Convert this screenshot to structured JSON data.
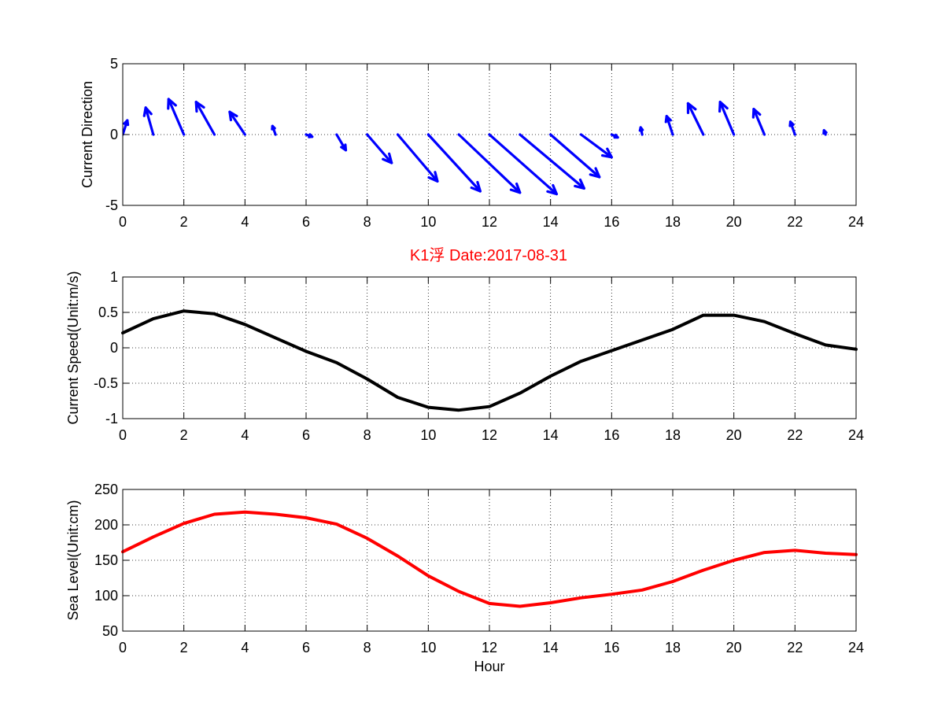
{
  "title": {
    "text": "K1浮    Date:2017-08-31",
    "color": "#ff0000"
  },
  "chart_data": [
    {
      "type": "quiver",
      "ylabel": "Current Direction",
      "xlim": [
        0,
        24
      ],
      "ylim": [
        -5,
        5
      ],
      "xticks": [
        0,
        2,
        4,
        6,
        8,
        10,
        12,
        14,
        16,
        18,
        20,
        22,
        24
      ],
      "yticks": [
        -5,
        0,
        5
      ],
      "grid": true,
      "color": "#0000ff",
      "origins_x": [
        0,
        1,
        2,
        3,
        4,
        5,
        6,
        7,
        8,
        9,
        10,
        11,
        12,
        13,
        14,
        15,
        16,
        17,
        18,
        19,
        20,
        21,
        22,
        23
      ],
      "u": [
        0.15,
        -0.25,
        -0.5,
        -0.6,
        -0.5,
        -0.1,
        0.2,
        0.3,
        0.8,
        1.3,
        1.7,
        2.0,
        2.2,
        2.1,
        1.6,
        1.0,
        0.2,
        -0.05,
        -0.2,
        -0.5,
        -0.45,
        -0.35,
        -0.15,
        -0.05
      ],
      "v": [
        1.0,
        1.9,
        2.5,
        2.3,
        1.6,
        0.6,
        -0.15,
        -1.1,
        -2.0,
        -3.3,
        -4.0,
        -4.1,
        -4.2,
        -3.8,
        -3.0,
        -1.6,
        -0.2,
        0.5,
        1.3,
        2.2,
        2.3,
        1.8,
        0.9,
        0.3
      ]
    },
    {
      "type": "line",
      "ylabel": "Current Speed(Unit:m/s)",
      "xlim": [
        0,
        24
      ],
      "ylim": [
        -1,
        1
      ],
      "xticks": [
        0,
        2,
        4,
        6,
        8,
        10,
        12,
        14,
        16,
        18,
        20,
        22,
        24
      ],
      "yticks": [
        -1,
        -0.5,
        0,
        0.5,
        1
      ],
      "grid": true,
      "color": "#000000",
      "x": [
        0,
        1,
        2,
        3,
        4,
        5,
        6,
        7,
        8,
        9,
        10,
        11,
        12,
        13,
        14,
        15,
        16,
        17,
        18,
        19,
        20,
        21,
        22,
        23,
        24
      ],
      "y": [
        0.21,
        0.41,
        0.52,
        0.48,
        0.33,
        0.14,
        -0.05,
        -0.21,
        -0.44,
        -0.7,
        -0.84,
        -0.88,
        -0.83,
        -0.64,
        -0.4,
        -0.19,
        -0.04,
        0.11,
        0.26,
        0.46,
        0.46,
        0.37,
        0.2,
        0.04,
        -0.02
      ]
    },
    {
      "type": "line",
      "ylabel": "Sea Level(Unit:cm)",
      "xlabel": "Hour",
      "xlim": [
        0,
        24
      ],
      "ylim": [
        50,
        250
      ],
      "xticks": [
        0,
        2,
        4,
        6,
        8,
        10,
        12,
        14,
        16,
        18,
        20,
        22,
        24
      ],
      "yticks": [
        50,
        100,
        150,
        200,
        250
      ],
      "grid": true,
      "color": "#ff0000",
      "x": [
        0,
        1,
        2,
        3,
        4,
        5,
        6,
        7,
        8,
        9,
        10,
        11,
        12,
        13,
        14,
        15,
        16,
        17,
        18,
        19,
        20,
        21,
        22,
        23,
        24
      ],
      "y": [
        162,
        183,
        202,
        215,
        218,
        215,
        210,
        201,
        181,
        156,
        128,
        106,
        89,
        85,
        90,
        97,
        102,
        108,
        120,
        136,
        150,
        161,
        164,
        160,
        158
      ]
    }
  ]
}
